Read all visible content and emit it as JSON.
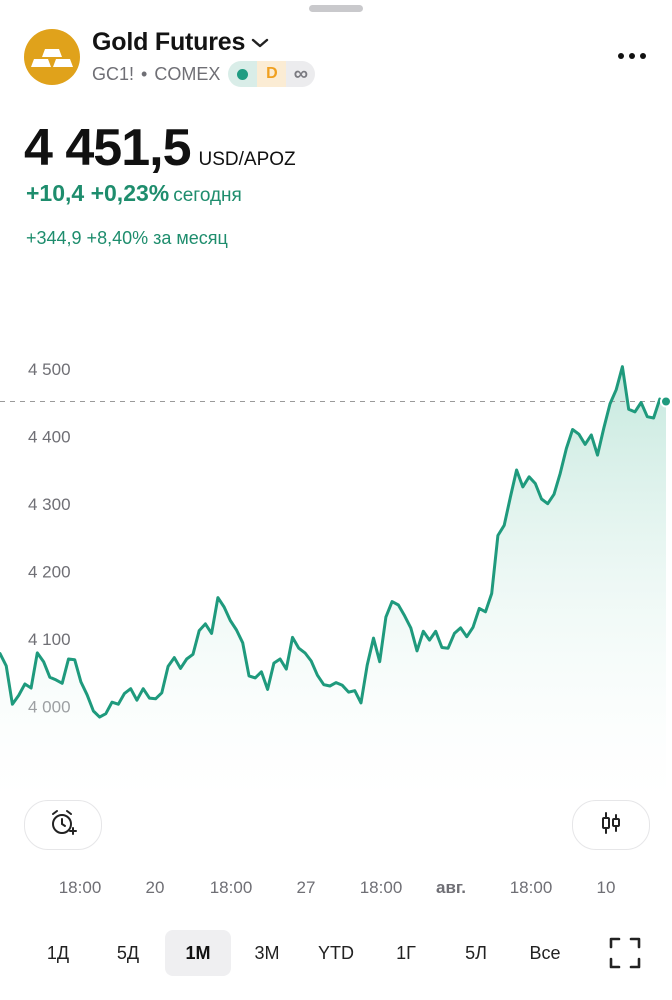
{
  "header": {
    "title": "Gold Futures",
    "ticker": "GC1!",
    "separator": "•",
    "exchange": "COMEX",
    "badge_market_status": "market-open-dot",
    "badge_delayed": "D",
    "badge_infinite": "∞"
  },
  "quote": {
    "price": "4 451,5",
    "currency": "USD/APOZ",
    "change_today": "+10,4 +0,23%",
    "change_today_label": "сегодня",
    "change_month": "+344,9 +8,40% за месяц"
  },
  "colors": {
    "accent_green": "#1e8d6d",
    "line_green": "#1f9a7d",
    "logo_gold": "#e0a21b"
  },
  "chart_data": {
    "type": "area",
    "y_ticks": [
      "4 500",
      "4 400",
      "4 300",
      "4 200",
      "4 100",
      "4 000"
    ],
    "y_tick_values": [
      4500,
      4400,
      4300,
      4200,
      4100,
      4000
    ],
    "ylim": [
      3950,
      4550
    ],
    "last_value": 4451.5,
    "x_labels": [
      "18:00",
      "20",
      "18:00",
      "27",
      "18:00",
      "авг.",
      "18:00",
      "10"
    ],
    "series": [
      {
        "values": [
          4078,
          4060,
          4003,
          4016,
          4033,
          4027,
          4079,
          4066,
          4043,
          4039,
          4034,
          4070,
          4069,
          4036,
          4017,
          3993,
          3984,
          3989,
          4006,
          4003,
          4019,
          4026,
          4009,
          4026,
          4012,
          4011,
          4020,
          4059,
          4072,
          4056,
          4070,
          4077,
          4112,
          4122,
          4108,
          4161,
          4147,
          4127,
          4113,
          4094,
          4045,
          4042,
          4051,
          4025,
          4064,
          4070,
          4055,
          4102,
          4086,
          4079,
          4067,
          4046,
          4032,
          4030,
          4035,
          4031,
          4021,
          4023,
          4005,
          4061,
          4101,
          4066,
          4132,
          4155,
          4150,
          4134,
          4116,
          4082,
          4111,
          4098,
          4111,
          4087,
          4086,
          4108,
          4116,
          4103,
          4117,
          4145,
          4140,
          4167,
          4253,
          4268,
          4310,
          4350,
          4325,
          4340,
          4330,
          4307,
          4300,
          4314,
          4345,
          4382,
          4410,
          4403,
          4388,
          4402,
          4372,
          4412,
          4448,
          4469,
          4503,
          4440,
          4436,
          4450,
          4429,
          4427,
          4455,
          4451.5
        ]
      }
    ]
  },
  "buttons": {
    "alert_icon": "alarm-plus-icon",
    "candles_icon": "candlestick-icon",
    "fullscreen_icon": "fullscreen-icon"
  },
  "ranges": [
    {
      "label": "1Д",
      "active": false
    },
    {
      "label": "5Д",
      "active": false
    },
    {
      "label": "1М",
      "active": true
    },
    {
      "label": "3М",
      "active": false
    },
    {
      "label": "YTD",
      "active": false
    },
    {
      "label": "1Г",
      "active": false
    },
    {
      "label": "5Л",
      "active": false
    },
    {
      "label": "Все",
      "active": false
    }
  ]
}
